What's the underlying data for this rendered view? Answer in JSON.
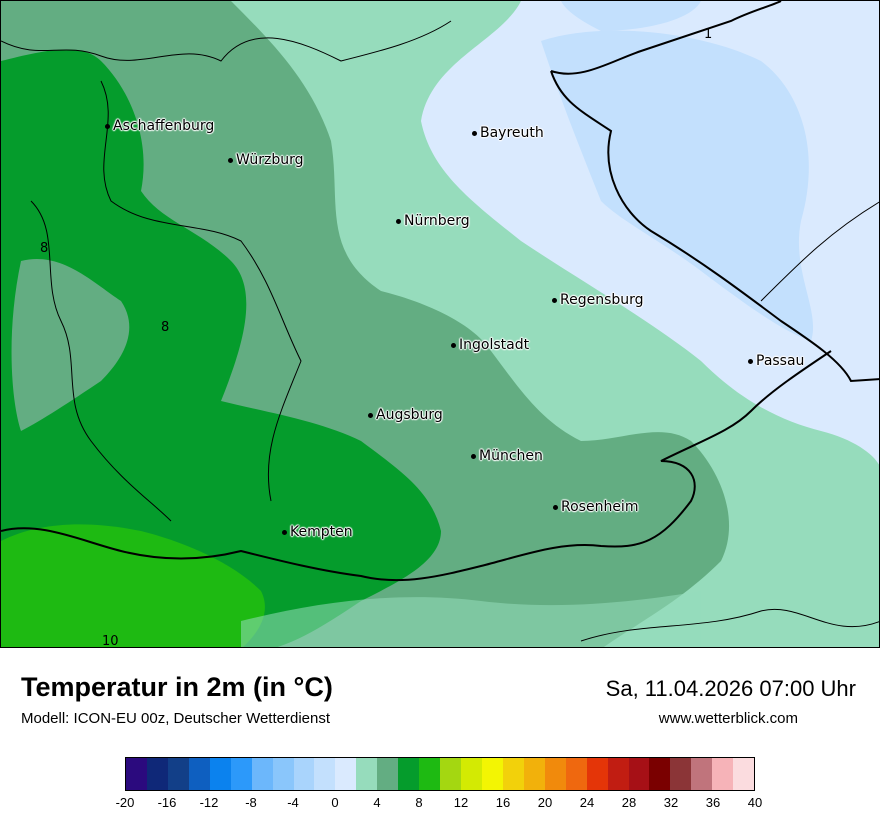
{
  "map": {
    "cities": [
      {
        "name": "Aschaffenburg"
      },
      {
        "name": "Würzburg"
      },
      {
        "name": "Bayreuth"
      },
      {
        "name": "Nürnberg"
      },
      {
        "name": "Regensburg"
      },
      {
        "name": "Ingolstadt"
      },
      {
        "name": "Passau"
      },
      {
        "name": "Augsburg"
      },
      {
        "name": "München"
      },
      {
        "name": "Rosenheim"
      },
      {
        "name": "Kempten"
      }
    ],
    "contour_labels": [
      "1",
      "8",
      "8",
      "10"
    ]
  },
  "header": {
    "title": "Temperatur in 2m (in °C)",
    "model": "Modell: ICON-EU 00z, Deutscher Wetterdienst",
    "datetime": "Sa, 11.04.2026 07:00 Uhr",
    "site": "www.wetterblick.com"
  },
  "legend": {
    "ticks": [
      "-20",
      "-16",
      "-12",
      "-8",
      "-4",
      "0",
      "4",
      "8",
      "12",
      "16",
      "20",
      "24",
      "28",
      "32",
      "36",
      "40"
    ],
    "colors": [
      "#2b0a7e",
      "#0f2878",
      "#123f88",
      "#0e5fc0",
      "#0b82ee",
      "#2c99fa",
      "#6cb7fb",
      "#8ac6fb",
      "#a9d4fc",
      "#c3e0fd",
      "#daeafe",
      "#96dcbc",
      "#63ad82",
      "#059c2c",
      "#1eba12",
      "#a4d711",
      "#d3ea03",
      "#f3f503",
      "#f2d10b",
      "#f2b10b",
      "#f18a0c",
      "#ef680f",
      "#e43508",
      "#c11d12",
      "#a61016",
      "#7a0000",
      "#8b3537",
      "#c0747c",
      "#f6b3b8",
      "#fbdcdf"
    ]
  }
}
